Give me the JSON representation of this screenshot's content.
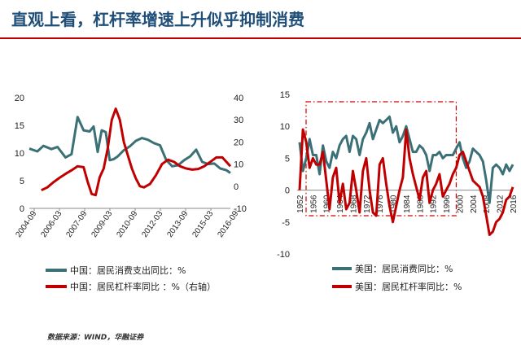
{
  "slide": {
    "title": "直观上看，杠杆率增速上升似乎抑制消费",
    "source": "数据来源：WIND，华融证券"
  },
  "colors": {
    "consumption": "#3b7176",
    "leverage": "#c00000",
    "title": "#1f4e79"
  },
  "chart_data": [
    {
      "type": "line",
      "region": "China",
      "x_tick_labels": [
        "2004-09",
        "2006-03",
        "2007-09",
        "2009-03",
        "2010-09",
        "2012-03",
        "2013-09",
        "2015-03",
        "2016-09"
      ],
      "left_axis": {
        "ylim": [
          0,
          20
        ],
        "ticks": [
          "0",
          "5",
          "10",
          "15",
          "20"
        ]
      },
      "right_axis": {
        "ylim": [
          -10,
          40
        ],
        "ticks": [
          "-10",
          "0",
          "10",
          "20",
          "30",
          "40"
        ]
      },
      "series": [
        {
          "name": "中国：居民消费支出同比：%",
          "axis": "left",
          "color": "#3b7176",
          "x": [
            0,
            0.04,
            0.07,
            0.11,
            0.14,
            0.18,
            0.21,
            0.24,
            0.27,
            0.3,
            0.32,
            0.34,
            0.36,
            0.38,
            0.4,
            0.42,
            0.44,
            0.47,
            0.5,
            0.53,
            0.56,
            0.59,
            0.62,
            0.65,
            0.68,
            0.71,
            0.74,
            0.77,
            0.8,
            0.83,
            0.86,
            0.89,
            0.92,
            0.95,
            0.98,
            1
          ],
          "values": [
            10.8,
            10.3,
            11.3,
            10.7,
            11.1,
            9.2,
            9.8,
            16.5,
            14.1,
            13.9,
            14.8,
            10.2,
            14.1,
            13.8,
            8.7,
            8.9,
            9.4,
            10.5,
            11.2,
            12.2,
            12.7,
            12.4,
            11.8,
            11.4,
            8.8,
            7.6,
            7.8,
            8.7,
            9.4,
            10.6,
            8.4,
            8.0,
            8.1,
            7.2,
            6.9,
            6.4
          ]
        },
        {
          "name": "中国：居民杠杆率同比：%（右轴）",
          "axis": "right",
          "color": "#c00000",
          "x": [
            0.06,
            0.09,
            0.12,
            0.15,
            0.18,
            0.21,
            0.24,
            0.27,
            0.29,
            0.31,
            0.33,
            0.35,
            0.37,
            0.39,
            0.41,
            0.43,
            0.45,
            0.47,
            0.49,
            0.51,
            0.53,
            0.55,
            0.57,
            0.6,
            0.63,
            0.66,
            0.69,
            0.72,
            0.75,
            0.78,
            0.81,
            0.84,
            0.87,
            0.9,
            0.93,
            0.96,
            1
          ],
          "values": [
            -1.8,
            -0.5,
            1.8,
            3.8,
            5.6,
            7.2,
            9.0,
            8.6,
            2.1,
            -3.5,
            -4.0,
            4.0,
            8.0,
            17.0,
            30.0,
            35.0,
            30.0,
            20.0,
            14.0,
            8.0,
            3.5,
            0.0,
            -0.5,
            1.0,
            5.0,
            10.0,
            12.0,
            11.0,
            9.0,
            8.0,
            7.5,
            7.8,
            9.0,
            11.0,
            13.0,
            13.0,
            9.0
          ]
        }
      ],
      "legend": [
        {
          "label": "中国：居民消费支出同比：%",
          "color": "#3b7176"
        },
        {
          "label": "中国：居民杠杆率同比 ：%（右轴）",
          "color": "#c00000"
        }
      ]
    },
    {
      "type": "line",
      "region": "USA",
      "x_tick_labels": [
        "1952",
        "1956",
        "1960",
        "1964",
        "1968",
        "1972",
        "1976",
        "1980",
        "1984",
        "1988",
        "1992",
        "1996",
        "2000",
        "2004",
        "2008",
        "2012",
        "2016"
      ],
      "x_range": [
        1952,
        2016
      ],
      "y_axis": {
        "ylim": [
          -10,
          15
        ],
        "ticks": [
          "-10",
          "-5",
          "0",
          "5",
          "10",
          "15"
        ]
      },
      "series": [
        {
          "name": "美国：居民消费同比：%",
          "color": "#3b7176",
          "x": [
            1952,
            1953,
            1954,
            1955,
            1956,
            1957,
            1958,
            1959,
            1960,
            1961,
            1962,
            1963,
            1964,
            1965,
            1966,
            1967,
            1968,
            1969,
            1970,
            1971,
            1972,
            1973,
            1974,
            1975,
            1976,
            1977,
            1978,
            1979,
            1980,
            1981,
            1982,
            1983,
            1984,
            1985,
            1986,
            1987,
            1988,
            1989,
            1990,
            1991,
            1992,
            1993,
            1994,
            1995,
            1996,
            1997,
            1998,
            1999,
            2000,
            2001,
            2002,
            2003,
            2004,
            2005,
            2006,
            2007,
            2008,
            2009,
            2010,
            2011,
            2012,
            2013,
            2014,
            2015,
            2016
          ],
          "values": [
            7.5,
            3.0,
            5.0,
            8.0,
            5.5,
            5.5,
            2.5,
            7.0,
            4.5,
            3.5,
            6.0,
            5.0,
            7.0,
            8.0,
            8.5,
            6.0,
            8.5,
            8.0,
            5.5,
            8.0,
            9.0,
            10.5,
            8.0,
            9.5,
            11.0,
            10.5,
            11.0,
            11.5,
            9.0,
            10.0,
            7.5,
            8.5,
            10.0,
            8.0,
            6.0,
            6.0,
            7.0,
            6.5,
            5.5,
            3.0,
            5.5,
            5.5,
            6.0,
            5.0,
            5.5,
            5.5,
            5.5,
            6.5,
            7.5,
            5.0,
            3.5,
            4.5,
            6.5,
            6.0,
            5.5,
            4.5,
            1.5,
            -2.0,
            3.5,
            4.0,
            3.5,
            2.5,
            4.0,
            3.0,
            4.0
          ]
        },
        {
          "name": "美国：居民杠杆率同比：%",
          "color": "#c00000",
          "x": [
            1952,
            1953,
            1954,
            1955,
            1956,
            1957,
            1958,
            1959,
            1960,
            1961,
            1962,
            1963,
            1964,
            1965,
            1966,
            1967,
            1968,
            1969,
            1970,
            1971,
            1972,
            1973,
            1974,
            1975,
            1976,
            1977,
            1978,
            1979,
            1980,
            1981,
            1982,
            1983,
            1984,
            1985,
            1986,
            1987,
            1988,
            1989,
            1990,
            1991,
            1992,
            1993,
            1994,
            1995,
            1996,
            1997,
            1998,
            1999,
            2000,
            2001,
            2002,
            2003,
            2004,
            2005,
            2006,
            2007,
            2008,
            2009,
            2010,
            2011,
            2012,
            2013,
            2014,
            2015,
            2016
          ],
          "values": [
            0.0,
            9.5,
            7.5,
            3.5,
            5.0,
            4.0,
            4.0,
            6.0,
            1.5,
            -3.0,
            2.0,
            3.5,
            -2.0,
            1.0,
            -3.0,
            -2.0,
            3.0,
            0.0,
            -3.5,
            3.0,
            5.0,
            0.0,
            -3.5,
            -4.0,
            4.0,
            5.0,
            1.0,
            -2.5,
            -5.0,
            -2.5,
            0.0,
            2.0,
            9.5,
            5.0,
            2.5,
            0.5,
            -1.5,
            2.0,
            3.0,
            -2.0,
            0.0,
            1.0,
            2.5,
            -1.0,
            0.0,
            1.0,
            2.5,
            3.5,
            5.5,
            6.0,
            4.5,
            3.0,
            1.5,
            1.0,
            0.5,
            -1.0,
            -4.0,
            -7.0,
            -6.5,
            -5.0,
            -4.5,
            -3.5,
            -1.5,
            -1.0,
            0.5
          ]
        }
      ],
      "legend": [
        {
          "label": "美国：居民消费同比：%",
          "color": "#3b7176"
        },
        {
          "label": "美国：居民杠杆率同比：%",
          "color": "#c00000"
        }
      ],
      "highlight_period": [
        1952,
        1999
      ]
    }
  ]
}
